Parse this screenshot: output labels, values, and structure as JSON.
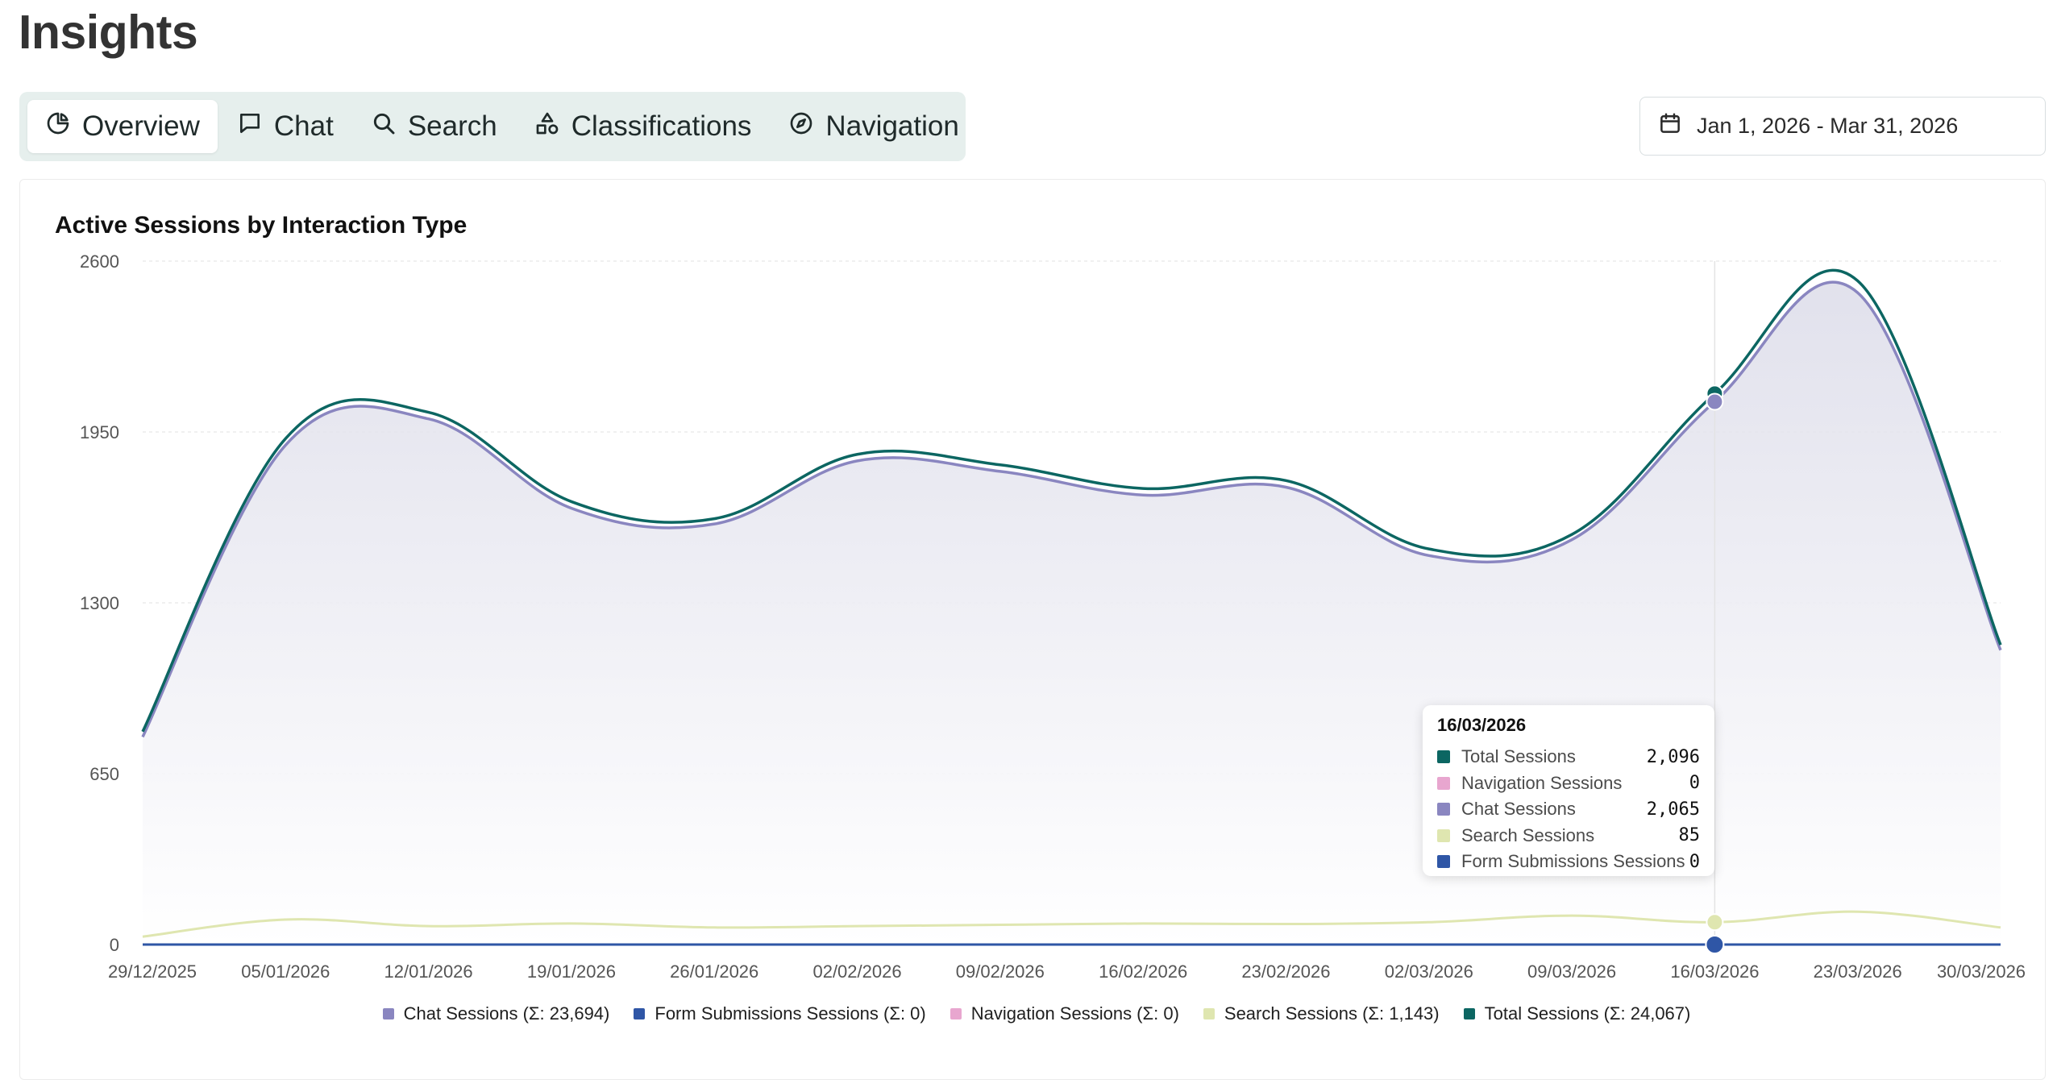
{
  "page": {
    "title": "Insights"
  },
  "tabs": [
    {
      "label": "Overview",
      "icon": "pie-chart-icon",
      "active": true
    },
    {
      "label": "Chat",
      "icon": "chat-bubble-icon",
      "active": false
    },
    {
      "label": "Search",
      "icon": "search-icon",
      "active": false
    },
    {
      "label": "Classifications",
      "icon": "shapes-icon",
      "active": false
    },
    {
      "label": "Navigation",
      "icon": "compass-icon",
      "active": false
    }
  ],
  "date_range": {
    "label": "Jan 1, 2026 - Mar 31, 2026",
    "icon": "calendar-icon"
  },
  "chart_data": {
    "type": "area",
    "title": "Active Sessions by Interaction Type",
    "x": [
      "29/12/2025",
      "05/01/2026",
      "12/01/2026",
      "19/01/2026",
      "26/01/2026",
      "02/02/2026",
      "09/02/2026",
      "16/02/2026",
      "23/02/2026",
      "02/03/2026",
      "09/03/2026",
      "16/03/2026",
      "23/03/2026",
      "30/03/2026"
    ],
    "ylim": [
      0,
      2600
    ],
    "yticks": [
      0,
      650,
      1300,
      1950,
      2600
    ],
    "grid": true,
    "legend_position": "bottom",
    "series": [
      {
        "name": "Chat Sessions",
        "total_label": "Chat Sessions (Σ: 23,694)",
        "color": "#8a86c0",
        "values": [
          790,
          1900,
          2000,
          1660,
          1600,
          1840,
          1800,
          1710,
          1740,
          1480,
          1540,
          2065,
          2480,
          1120
        ]
      },
      {
        "name": "Form Submissions Sessions",
        "total_label": "Form Submissions Sessions (Σ: 0)",
        "color": "#2f56a6",
        "values": [
          0,
          0,
          0,
          0,
          0,
          0,
          0,
          0,
          0,
          0,
          0,
          0,
          0,
          0
        ]
      },
      {
        "name": "Navigation Sessions",
        "total_label": "Navigation Sessions (Σ: 0)",
        "color": "#e8a6cf",
        "values": [
          0,
          0,
          0,
          0,
          0,
          0,
          0,
          0,
          0,
          0,
          0,
          0,
          0,
          0
        ]
      },
      {
        "name": "Search Sessions",
        "total_label": "Search Sessions (Σ: 1,143)",
        "color": "#dfe6b0",
        "values": [
          30,
          95,
          70,
          80,
          65,
          70,
          75,
          80,
          78,
          85,
          110,
          85,
          125,
          65
        ]
      },
      {
        "name": "Total Sessions",
        "total_label": "Total Sessions (Σ: 24,067)",
        "color": "#0c6662",
        "values": [
          810,
          1925,
          2025,
          1685,
          1620,
          1865,
          1825,
          1735,
          1765,
          1505,
          1560,
          2096,
          2525,
          1140
        ]
      }
    ],
    "tooltip": {
      "date": "16/03/2026",
      "index": 11,
      "rows": [
        {
          "name": "Total Sessions",
          "value": "2,096",
          "color": "#0c6662"
        },
        {
          "name": "Navigation Sessions",
          "value": "0",
          "color": "#e8a6cf"
        },
        {
          "name": "Chat Sessions",
          "value": "2,065",
          "color": "#8a86c0"
        },
        {
          "name": "Search Sessions",
          "value": "85",
          "color": "#dfe6b0"
        },
        {
          "name": "Form Submissions Sessions",
          "value": "0",
          "color": "#2f56a6"
        }
      ]
    }
  }
}
